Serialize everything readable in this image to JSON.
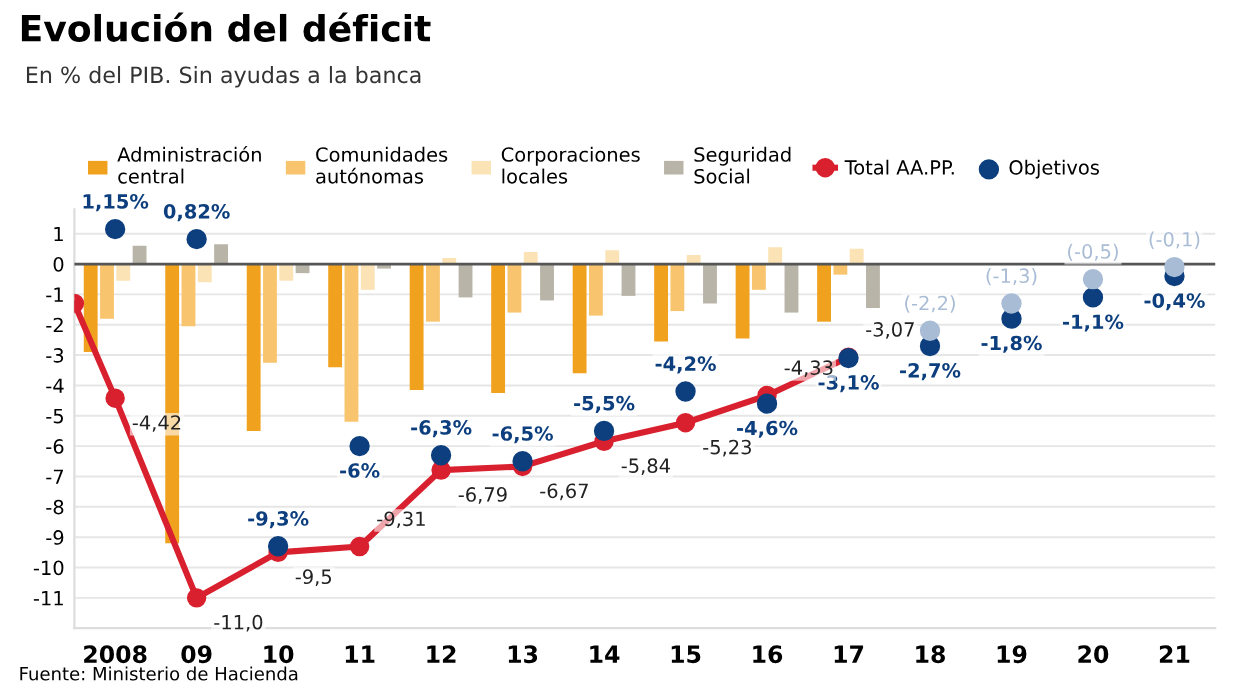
{
  "chart_data": {
    "type": "bar",
    "title": "Evolución del déficit",
    "subtitle": "En % del PIB. Sin ayudas a la banca",
    "annotations": [
      "Fuente: Ministerio de Hacienda"
    ],
    "xlim": [
      2007.5,
      2021.5
    ],
    "xticks": [
      2008,
      {
        "value": 2009,
        "label": "09"
      },
      {
        "value": 2010,
        "label": "10"
      },
      {
        "value": 2011,
        "label": "11"
      },
      {
        "value": 2012,
        "label": "12"
      },
      {
        "value": 2013,
        "label": "13"
      },
      {
        "value": 2014,
        "label": "14"
      },
      {
        "value": 2015,
        "label": "15"
      },
      {
        "value": 2016,
        "label": "16"
      },
      {
        "value": 2017,
        "label": "17"
      },
      {
        "value": 2018,
        "label": "18"
      },
      {
        "value": 2019,
        "label": "19"
      },
      {
        "value": 2020,
        "label": "20"
      },
      {
        "value": 2021,
        "label": "21"
      }
    ],
    "ylim": [
      -12,
      1.8
    ],
    "yticks": [
      -11,
      -10,
      -9,
      -8,
      -7,
      -6,
      -5,
      -4,
      -3,
      -2,
      -1,
      0,
      1
    ],
    "grid": "y",
    "legend": "top",
    "ref_lines": [
      {
        "axis": "y",
        "value": 0,
        "color": "#555555"
      }
    ],
    "series": [
      {
        "name": "Administración\ncentral",
        "color": "#f0a11e",
        "x": [
          2008,
          2009,
          2010,
          2011,
          2012,
          2013,
          2014,
          2015,
          2016,
          2017
        ],
        "values": [
          -2.9,
          -9.2,
          -5.5,
          -3.4,
          -4.15,
          -4.25,
          -3.6,
          -2.55,
          -2.45,
          -1.9
        ]
      },
      {
        "name": "Comunidades\nautónomas",
        "color": "#f8c56e",
        "x": [
          2008,
          2009,
          2010,
          2011,
          2012,
          2013,
          2014,
          2015,
          2016,
          2017
        ],
        "values": [
          -1.8,
          -2.05,
          -3.25,
          -5.2,
          -1.9,
          -1.6,
          -1.7,
          -1.55,
          -0.85,
          -0.35
        ]
      },
      {
        "name": "Corporaciones\nlocales",
        "color": "#fbe3b5",
        "x": [
          2008,
          2009,
          2010,
          2011,
          2012,
          2013,
          2014,
          2015,
          2016,
          2017
        ],
        "values": [
          -0.55,
          -0.6,
          -0.55,
          -0.85,
          0.2,
          0.4,
          0.45,
          0.3,
          0.55,
          0.5
        ]
      },
      {
        "name": "Seguridad\nSocial",
        "color": "#b9b4a8",
        "x": [
          2008,
          2009,
          2010,
          2011,
          2012,
          2013,
          2014,
          2015,
          2016,
          2017
        ],
        "values": [
          0.6,
          0.65,
          -0.3,
          -0.15,
          -1.1,
          -1.2,
          -1.05,
          -1.3,
          -1.6,
          -1.45
        ]
      },
      {
        "type": "line",
        "name": "Total AA.PP.",
        "color": "#d9202e",
        "marker": "circle",
        "x": [
          2007.5,
          2008,
          2009,
          2010,
          2011,
          2012,
          2013,
          2014,
          2015,
          2016,
          2017
        ],
        "values": [
          -1.3,
          -4.42,
          -11.0,
          -9.5,
          -9.31,
          -6.79,
          -6.67,
          -5.84,
          -5.23,
          -4.33,
          -3.07
        ],
        "value_labels": [
          null,
          "-4,42",
          "-11,0",
          "-9,5",
          "-9,31",
          "-6,79",
          "-6,67",
          "-5,84",
          "-5,23",
          "-4,33",
          "-3,07"
        ]
      },
      {
        "type": "scatter",
        "name": "Objetivos",
        "color": "#0d3f7f",
        "marker": "circle",
        "x": [
          2008,
          2009,
          2010,
          2011,
          2012,
          2013,
          2014,
          2015,
          2016,
          2017,
          2018,
          2019,
          2020,
          2021
        ],
        "values": [
          1.15,
          0.82,
          -9.3,
          -6,
          -6.3,
          -6.5,
          -5.5,
          -4.2,
          -4.6,
          -3.1,
          -2.7,
          -1.8,
          -1.1,
          -0.4
        ],
        "value_labels": [
          "1,15%",
          "0,82%",
          "-9,3%",
          "-6%",
          "-6,3%",
          "-6,5%",
          "-5,5%",
          "-4,2%",
          "-4,6%",
          "-3,1%",
          "-2,7%",
          "-1,8%",
          "-1,1%",
          "-0,4%"
        ]
      },
      {
        "type": "scatter",
        "color": "#a9bcd5",
        "marker": "circle",
        "x": [
          2018,
          2019,
          2020,
          2021
        ],
        "values": [
          -2.2,
          -1.3,
          -0.5,
          -0.1
        ],
        "value_labels": [
          "(-2,2)",
          "(-1,3)",
          "(-0,5)",
          "(-0,1)"
        ]
      }
    ]
  }
}
